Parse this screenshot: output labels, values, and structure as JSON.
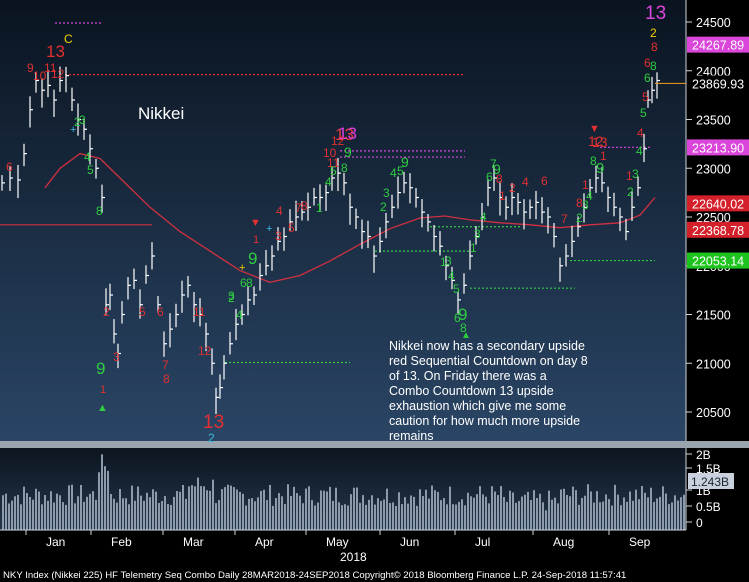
{
  "chart_data": {
    "type": "candlestick",
    "title": "Nikkei",
    "annotation_lines": [
      "Nikkei now has a secondary upside",
      "red Sequential Countdown on day 8",
      "of 13.  On Friday there was a",
      "Combo Countdown 13 upside",
      "exhaustion which give me some",
      "caution for how much more upside",
      "remains"
    ],
    "footer": "NKY Index (Nikkei 225) HF Telemetry Seq Combo  Daily 28MAR2018-24SEP2018 Copyright© 2018 Bloomberg Finance L.P. 24-Sep-2018 11:57:41",
    "year_label": "2018",
    "x_labels": [
      "Jan",
      "Feb",
      "Mar",
      "Apr",
      "May",
      "Jun",
      "Jul",
      "Aug",
      "Sep"
    ],
    "y_ticks": [
      24500,
      24000,
      23500,
      23000,
      22500,
      22000,
      21500,
      21000,
      20500
    ],
    "y_range": [
      20000,
      24600
    ],
    "price_tags": [
      {
        "value": 24267.89,
        "label": "24267.89",
        "bg": "#d946d9",
        "fg": "#ffffff"
      },
      {
        "value": 23869.93,
        "label": "23869.93",
        "bg": "#000000",
        "fg": "#ffffff"
      },
      {
        "value": 23213.9,
        "label": "23213.90",
        "bg": "#d946d9",
        "fg": "#ffffff"
      },
      {
        "value": 22640.02,
        "label": "22640.02",
        "bg": "#d4202a",
        "fg": "#ffffff"
      },
      {
        "value": 22368.78,
        "label": "22368.78",
        "bg": "#d4202a",
        "fg": "#ffffff"
      },
      {
        "value": 22053.14,
        "label": "22053.14",
        "bg": "#1ec41e",
        "fg": "#ffffff"
      }
    ],
    "volume": {
      "y_ticks": [
        "2B",
        "1.5B",
        "1B",
        "0.5B",
        "0"
      ],
      "current_label": "1.243B"
    },
    "counts": [
      {
        "text": "13",
        "color": "#e03030",
        "label": "red-13-jan"
      },
      {
        "text": "C",
        "color": "#f5d000",
        "label": "c-jan"
      },
      {
        "text": "13",
        "color": "#e03a3a",
        "label": "red-13-may"
      },
      {
        "text": "13",
        "color": "#e040e0",
        "label": "magenta-13-may"
      },
      {
        "text": "13",
        "color": "#e03030",
        "label": "red-13-mar"
      },
      {
        "text": "9",
        "color": "#2ecc40",
        "label": "green-9-feb"
      },
      {
        "text": "9",
        "color": "#2ecc40",
        "label": "green-9-apr"
      },
      {
        "text": "9",
        "color": "#2ecc40",
        "label": "green-9-jun"
      },
      {
        "text": "13",
        "color": "#d946d9",
        "label": "magenta-13-sep"
      },
      {
        "text": "2",
        "color": "#f5d000",
        "label": "yellow-2-sep"
      },
      {
        "text": "8",
        "color": "#e03030",
        "label": "red-8-sep"
      },
      {
        "text": "2",
        "color": "#3fb8e0",
        "label": "blue-2-mar"
      }
    ]
  },
  "colors": {
    "plot_top": "#0a1420",
    "plot_bottom": "#27405c",
    "ma_line": "#d03040",
    "candle": "#ffffff",
    "magenta": "#d946d9",
    "green": "#2ecc40",
    "red": "#e03030",
    "yellow": "#f5d000"
  }
}
